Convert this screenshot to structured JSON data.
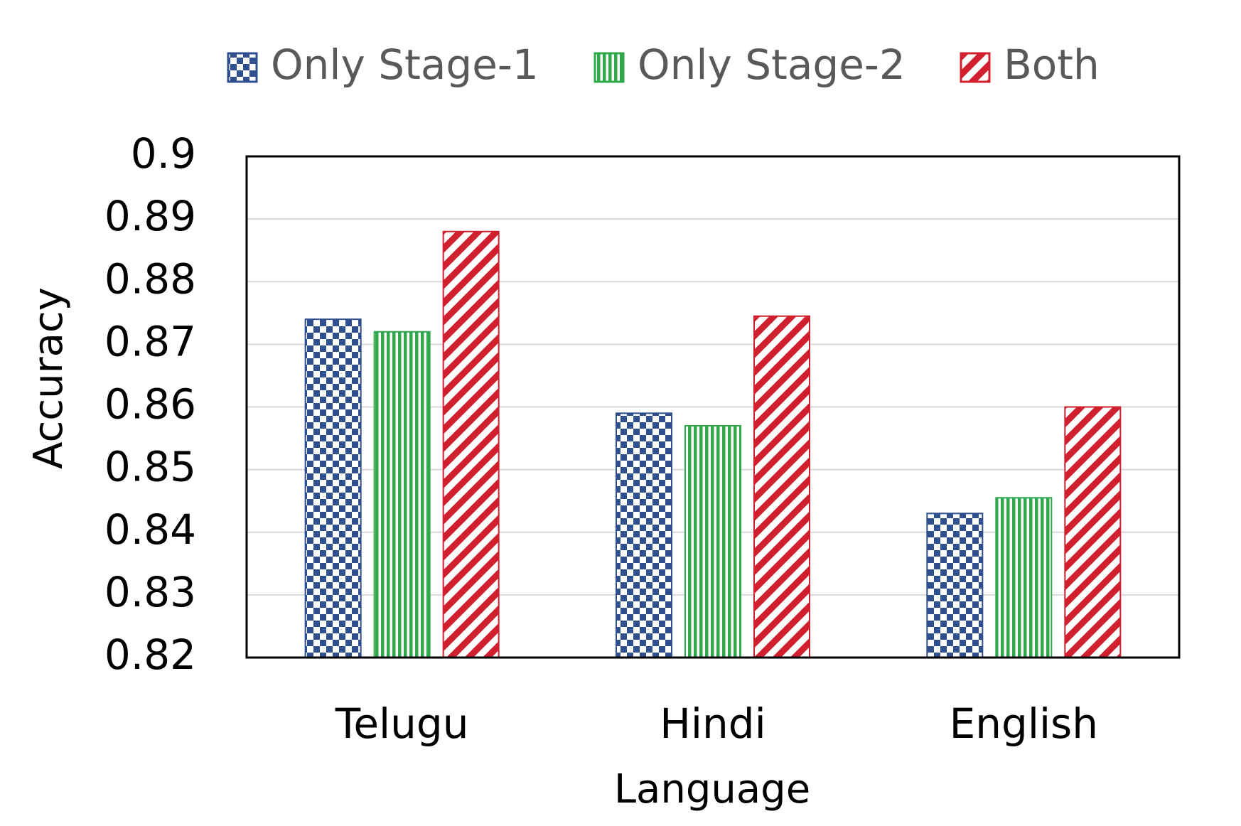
{
  "chart_data": {
    "type": "bar",
    "x_label": "Language",
    "y_label": "Accuracy",
    "categories": [
      "Telugu",
      "Hindi",
      "English"
    ],
    "series": [
      {
        "name": "Only Stage-1",
        "color": "#2f4f8f",
        "pattern": "checker",
        "values": [
          0.874,
          0.859,
          0.843
        ]
      },
      {
        "name": "Only Stage-2",
        "color": "#2ea84a",
        "pattern": "vertical",
        "values": [
          0.872,
          0.857,
          0.8455
        ]
      },
      {
        "name": "Both",
        "color": "#d0202e",
        "pattern": "diagonal",
        "values": [
          0.888,
          0.8745,
          0.86
        ]
      }
    ],
    "ylim": [
      0.82,
      0.9
    ],
    "yticks": [
      0.82,
      0.83,
      0.84,
      0.85,
      0.86,
      0.87,
      0.88,
      0.89,
      0.9
    ],
    "grid": true,
    "legend": "top"
  }
}
